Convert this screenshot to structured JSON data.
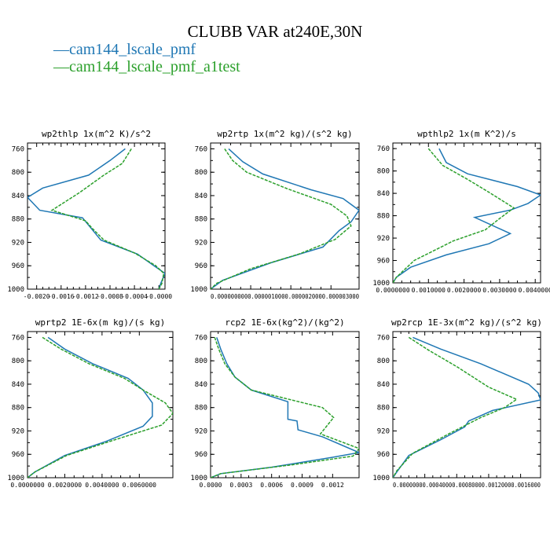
{
  "figure": {
    "title": "CLUBB VAR at240E,30N",
    "legend": [
      {
        "label": "cam144_lscale_pmf",
        "color": "#1f77b4",
        "dash": "solid"
      },
      {
        "label": "cam144_lscale_pmf_a1test",
        "color": "#2ca02c",
        "dash": "dashed"
      }
    ]
  },
  "chart_data": [
    {
      "type": "line",
      "title": "wp2thlp  1x(m^2 K)/s^2",
      "ylim": [
        1000,
        750
      ],
      "yticks": [
        "760",
        "800",
        "840",
        "880",
        "920",
        "960",
        "1000"
      ],
      "xlim": [
        -0.00215,
        0.0001
      ],
      "xticks": [
        {
          "v": -0.002,
          "label": "-0.0020"
        },
        {
          "v": -0.0016,
          "label": "-0.0016"
        },
        {
          "v": -0.0012,
          "label": "-0.0012"
        },
        {
          "v": -0.0008,
          "label": "-0.0008"
        },
        {
          "v": -0.0004,
          "label": "-0.0004"
        },
        {
          "v": 0.0,
          "label": "-0.0000"
        }
      ],
      "series": [
        {
          "color": "#1f77b4",
          "dash": "solid",
          "points": [
            [
              -0.00055,
              760
            ],
            [
              -0.0008,
              780
            ],
            [
              -0.00115,
              805
            ],
            [
              -0.0019,
              827
            ],
            [
              -0.00215,
              843
            ],
            [
              -0.00195,
              865
            ],
            [
              -0.00125,
              878
            ],
            [
              -0.00095,
              916
            ],
            [
              -0.00035,
              940
            ],
            [
              -8e-05,
              960
            ],
            [
              0.0001,
              973
            ],
            [
              3e-05,
              990
            ],
            [
              0.0,
              1000
            ]
          ]
        },
        {
          "color": "#2ca02c",
          "dash": "dashed",
          "points": [
            [
              -0.00045,
              760
            ],
            [
              -0.0006,
              785
            ],
            [
              -0.0009,
              805
            ],
            [
              -0.0013,
              835
            ],
            [
              -0.00175,
              865
            ],
            [
              -0.0012,
              883
            ],
            [
              -0.0011,
              895
            ],
            [
              -0.0009,
              916
            ],
            [
              -0.0004,
              938
            ],
            [
              -5e-05,
              960
            ],
            [
              8e-05,
              973
            ],
            [
              5e-05,
              990
            ],
            [
              0.0,
              1000
            ]
          ]
        }
      ]
    },
    {
      "type": "line",
      "title": "wp2rtp  1x(m^2 kg)/(s^2 kg)",
      "ylim": [
        1000,
        750
      ],
      "yticks": [
        "760",
        "800",
        "840",
        "880",
        "920",
        "960",
        "1000"
      ],
      "xlim": [
        0.0,
        3.7e-06
      ],
      "xticks": [
        {
          "v": 0.0,
          "label": "0.000000"
        },
        {
          "v": 1e-06,
          "label": "0.000001"
        },
        {
          "v": 2e-06,
          "label": "0.000002"
        },
        {
          "v": 3e-06,
          "label": "0.000003"
        }
      ],
      "xticklabel_string": "0.0000000000.0000010000.0000020000.000003000",
      "series": [
        {
          "color": "#1f77b4",
          "dash": "solid",
          "points": [
            [
              4.5e-07,
              760
            ],
            [
              8e-07,
              782
            ],
            [
              1.3e-06,
              803
            ],
            [
              2.5e-06,
              830
            ],
            [
              3.3e-06,
              845
            ],
            [
              3.7e-06,
              865
            ],
            [
              3.5e-06,
              885
            ],
            [
              3.2e-06,
              900
            ],
            [
              2.8e-06,
              928
            ],
            [
              1.5e-06,
              955
            ],
            [
              3e-07,
              985
            ],
            [
              0.0,
              1000
            ]
          ]
        },
        {
          "color": "#2ca02c",
          "dash": "dashed",
          "points": [
            [
              3.5e-07,
              760
            ],
            [
              5.5e-07,
              780
            ],
            [
              9e-07,
              800
            ],
            [
              1.9e-06,
              828
            ],
            [
              3e-06,
              855
            ],
            [
              3.4e-06,
              875
            ],
            [
              3.5e-06,
              892
            ],
            [
              3.1e-06,
              915
            ],
            [
              2.2e-06,
              940
            ],
            [
              1e-06,
              965
            ],
            [
              1.5e-07,
              990
            ],
            [
              0.0,
              1000
            ]
          ]
        }
      ]
    },
    {
      "type": "line",
      "title": "wpthlp2  1x(m K^2)/s",
      "ylim": [
        1000,
        750
      ],
      "yticks": [
        "760",
        "800",
        "840",
        "880",
        "920",
        "960",
        "1000"
      ],
      "xlim": [
        0.0,
        0.00415
      ],
      "xticks": [
        {
          "v": 0.0,
          "label": "0.0000000"
        },
        {
          "v": 0.001,
          "label": "0.0010000"
        },
        {
          "v": 0.002,
          "label": "0.0020000"
        },
        {
          "v": 0.003,
          "label": "0.0030000"
        },
        {
          "v": 0.004,
          "label": "0.0040000"
        }
      ],
      "series": [
        {
          "color": "#1f77b4",
          "dash": "solid",
          "points": [
            [
              0.0013,
              760
            ],
            [
              0.0015,
              785
            ],
            [
              0.0021,
              805
            ],
            [
              0.0035,
              828
            ],
            [
              0.00415,
              843
            ],
            [
              0.0038,
              858
            ],
            [
              0.0033,
              870
            ],
            [
              0.0023,
              883
            ],
            [
              0.0033,
              912
            ],
            [
              0.0027,
              930
            ],
            [
              0.0015,
              950
            ],
            [
              0.0005,
              972
            ],
            [
              0.0001,
              990
            ],
            [
              0.0,
              1000
            ]
          ]
        },
        {
          "color": "#2ca02c",
          "dash": "dashed",
          "points": [
            [
              0.001,
              760
            ],
            [
              0.0014,
              790
            ],
            [
              0.0021,
              815
            ],
            [
              0.0027,
              838
            ],
            [
              0.0034,
              866
            ],
            [
              0.003,
              885
            ],
            [
              0.0026,
              905
            ],
            [
              0.0017,
              925
            ],
            [
              0.0006,
              960
            ],
            [
              0.0001,
              990
            ],
            [
              0.0,
              1000
            ]
          ]
        }
      ]
    },
    {
      "type": "line",
      "title": "wprtp2  1E-6x(m kg)/(s kg)",
      "ylim": [
        1000,
        750
      ],
      "yticks": [
        "760",
        "800",
        "840",
        "880",
        "920",
        "960",
        "1000"
      ],
      "xlim": [
        0.0,
        0.0078
      ],
      "xticks": [
        {
          "v": 0.0,
          "label": "0.0000000"
        },
        {
          "v": 0.002,
          "label": "0.0020000"
        },
        {
          "v": 0.004,
          "label": "0.0040000"
        },
        {
          "v": 0.006,
          "label": "0.0060000"
        }
      ],
      "series": [
        {
          "color": "#1f77b4",
          "dash": "solid",
          "points": [
            [
              0.0011,
              760
            ],
            [
              0.002,
              780
            ],
            [
              0.0035,
              805
            ],
            [
              0.0054,
              830
            ],
            [
              0.0062,
              850
            ],
            [
              0.0067,
              872
            ],
            [
              0.0067,
              895
            ],
            [
              0.0062,
              912
            ],
            [
              0.0042,
              938
            ],
            [
              0.002,
              962
            ],
            [
              0.0004,
              990
            ],
            [
              0.0,
              1000
            ]
          ]
        },
        {
          "color": "#2ca02c",
          "dash": "dashed",
          "points": [
            [
              0.0008,
              760
            ],
            [
              0.0018,
              780
            ],
            [
              0.0033,
              805
            ],
            [
              0.0052,
              830
            ],
            [
              0.0062,
              850
            ],
            [
              0.0074,
              872
            ],
            [
              0.0078,
              890
            ],
            [
              0.0072,
              910
            ],
            [
              0.0047,
              935
            ],
            [
              0.0021,
              962
            ],
            [
              0.0004,
              990
            ],
            [
              0.0,
              1000
            ]
          ]
        }
      ]
    },
    {
      "type": "line",
      "title": "rcp2  1E-6x(kg^2)/(kg^2)",
      "ylim": [
        1000,
        750
      ],
      "yticks": [
        "760",
        "800",
        "840",
        "880",
        "920",
        "960",
        "1000"
      ],
      "xlim": [
        0.0,
        0.00146
      ],
      "xticks": [
        {
          "v": 0.0,
          "label": "0.0000"
        },
        {
          "v": 0.0003,
          "label": "0.0003"
        },
        {
          "v": 0.0006,
          "label": "0.0006"
        },
        {
          "v": 0.0009,
          "label": "0.0009"
        },
        {
          "v": 0.0012,
          "label": "0.0012"
        }
      ],
      "series": [
        {
          "color": "#1f77b4",
          "dash": "solid",
          "points": [
            [
              6e-05,
              760
            ],
            [
              0.0001,
              780
            ],
            [
              0.00016,
              805
            ],
            [
              0.00024,
              828
            ],
            [
              0.0004,
              850
            ],
            [
              0.00076,
              870
            ],
            [
              0.00076,
              900
            ],
            [
              0.00085,
              903
            ],
            [
              0.00086,
              918
            ],
            [
              0.0011,
              930
            ],
            [
              0.00146,
              957
            ],
            [
              0.0012,
              965
            ],
            [
              0.0006,
              982
            ],
            [
              0.0001,
              993
            ],
            [
              0.0,
              1000
            ]
          ]
        },
        {
          "color": "#2ca02c",
          "dash": "dashed",
          "points": [
            [
              4e-05,
              760
            ],
            [
              8e-05,
              780
            ],
            [
              0.00014,
              805
            ],
            [
              0.00024,
              828
            ],
            [
              0.0004,
              850
            ],
            [
              0.0011,
              880
            ],
            [
              0.00121,
              897
            ],
            [
              0.00108,
              925
            ],
            [
              0.00146,
              950
            ],
            [
              0.0014,
              963
            ],
            [
              0.0008,
              978
            ],
            [
              0.0001,
              993
            ],
            [
              0.0,
              1000
            ]
          ]
        }
      ]
    },
    {
      "type": "line",
      "title": "wp2rcp  1E-3x(m^2 kg)/(s^2 kg)",
      "ylim": [
        1000,
        750
      ],
      "yticks": [
        "760",
        "800",
        "840",
        "880",
        "920",
        "960",
        "1000"
      ],
      "xlim": [
        0.0,
        0.00185
      ],
      "xticks": [
        {
          "v": 0.0,
          "label": "0.0000000"
        },
        {
          "v": 0.0004,
          "label": "0.0004000"
        },
        {
          "v": 0.0008,
          "label": "0.0008000"
        },
        {
          "v": 0.0012,
          "label": "0.0012000"
        },
        {
          "v": 0.0016,
          "label": "0.0016000"
        }
      ],
      "xticklabel_string": "0.00000000.00040000.00080000.00120000.0016000",
      "series": [
        {
          "color": "#1f77b4",
          "dash": "solid",
          "points": [
            [
              0.00025,
              760
            ],
            [
              0.0006,
              780
            ],
            [
              0.0011,
              805
            ],
            [
              0.0017,
              840
            ],
            [
              0.00182,
              855
            ],
            [
              0.00185,
              867
            ],
            [
              0.00125,
              885
            ],
            [
              0.00095,
              903
            ],
            [
              0.0009,
              913
            ],
            [
              0.0006,
              935
            ],
            [
              0.0002,
              962
            ],
            [
              5e-05,
              990
            ],
            [
              0.0,
              1000
            ]
          ]
        },
        {
          "color": "#2ca02c",
          "dash": "dashed",
          "points": [
            [
              0.0002,
              760
            ],
            [
              0.00045,
              782
            ],
            [
              0.0008,
              810
            ],
            [
              0.0012,
              845
            ],
            [
              0.00155,
              866
            ],
            [
              0.0014,
              880
            ],
            [
              0.0011,
              897
            ],
            [
              0.0007,
              925
            ],
            [
              0.00025,
              958
            ],
            [
              5e-05,
              988
            ],
            [
              0.0,
              1000
            ]
          ]
        }
      ]
    }
  ]
}
